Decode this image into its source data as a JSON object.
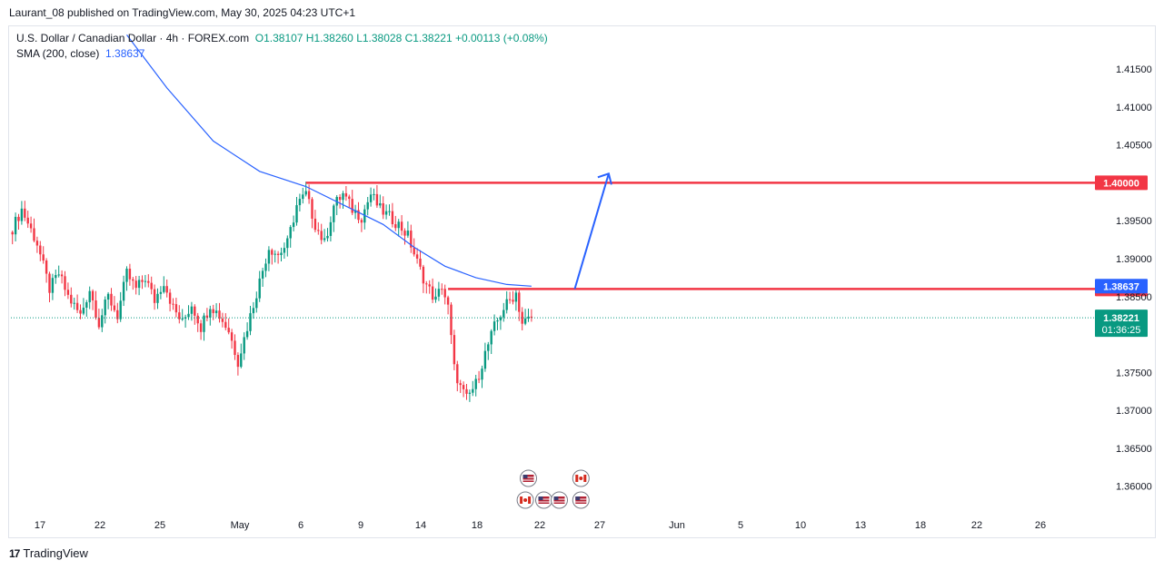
{
  "header": {
    "published_text": "Laurant_08 published on TradingView.com, May 30, 2025 04:23 UTC+1"
  },
  "legend": {
    "symbol": "U.S. Dollar / Canadian Dollar · 4h · FOREX.com",
    "ohlc": "O1.38107 H1.38260 L1.38028 C1.38221 +0.00113 (+0.08%)",
    "sma_label": "SMA (200, close)",
    "sma_value": "1.38637"
  },
  "footer": {
    "brand": "TradingView",
    "logo_text": "17"
  },
  "colors": {
    "up": "#089981",
    "down": "#f23645",
    "sma": "#2962ff",
    "level": "#f23645",
    "arrow": "#2962ff",
    "last_price": "#089981"
  },
  "chart_data": {
    "type": "candlestick",
    "symbol": "USDCAD",
    "timeframe": "4h",
    "y_ticks": [
      1.415,
      1.41,
      1.405,
      1.4,
      1.395,
      1.39,
      1.385,
      1.38,
      1.375,
      1.37,
      1.365,
      1.36
    ],
    "y_tick_labels": [
      "1.41500",
      "1.41000",
      "1.40500",
      "",
      "1.39500",
      "1.39000",
      "1.38500",
      "",
      "1.37500",
      "1.37000",
      "1.36500",
      "1.36000"
    ],
    "ylim": [
      1.3565,
      1.4205
    ],
    "x_ticks": [
      "17",
      "22",
      "25",
      "May",
      "6",
      "9",
      "14",
      "18",
      "22",
      "27",
      "Jun",
      "5",
      "10",
      "13",
      "18",
      "22",
      "26"
    ],
    "price_path": [
      [
        0,
        1.394
      ],
      [
        3,
        1.3965
      ],
      [
        8,
        1.392
      ],
      [
        12,
        1.386
      ],
      [
        15,
        1.388
      ],
      [
        18,
        1.385
      ],
      [
        22,
        1.3825
      ],
      [
        25,
        1.386
      ],
      [
        28,
        1.3815
      ],
      [
        31,
        1.385
      ],
      [
        34,
        1.3825
      ],
      [
        37,
        1.388
      ],
      [
        40,
        1.386
      ],
      [
        43,
        1.3875
      ],
      [
        46,
        1.3845
      ],
      [
        49,
        1.387
      ],
      [
        52,
        1.3835
      ],
      [
        55,
        1.3815
      ],
      [
        58,
        1.384
      ],
      [
        61,
        1.381
      ],
      [
        64,
        1.384
      ],
      [
        67,
        1.3825
      ],
      [
        70,
        1.3805
      ],
      [
        73,
        1.3765
      ],
      [
        76,
        1.381
      ],
      [
        80,
        1.387
      ],
      [
        83,
        1.3915
      ],
      [
        86,
        1.3905
      ],
      [
        89,
        1.392
      ],
      [
        92,
        1.397
      ],
      [
        95,
        1.3985
      ],
      [
        98,
        1.3945
      ],
      [
        101,
        1.392
      ],
      [
        104,
        1.397
      ],
      [
        107,
        1.3985
      ],
      [
        110,
        1.3965
      ],
      [
        113,
        1.3955
      ],
      [
        116,
        1.3985
      ],
      [
        119,
        1.3965
      ],
      [
        122,
        1.3955
      ],
      [
        125,
        1.3945
      ],
      [
        128,
        1.393
      ],
      [
        131,
        1.3895
      ],
      [
        134,
        1.3865
      ],
      [
        137,
        1.3845
      ],
      [
        139,
        1.3865
      ],
      [
        141,
        1.3835
      ],
      [
        143,
        1.3755
      ],
      [
        145,
        1.373
      ],
      [
        147,
        1.3715
      ],
      [
        150,
        1.3735
      ],
      [
        153,
        1.3775
      ],
      [
        156,
        1.381
      ],
      [
        159,
        1.3835
      ],
      [
        161,
        1.3845
      ],
      [
        163,
        1.3855
      ],
      [
        165,
        1.3815
      ],
      [
        168,
        1.3822
      ]
    ],
    "sma": {
      "name": "SMA (200, close)",
      "last": 1.38637,
      "points": [
        [
          37,
          1.4195
        ],
        [
          50,
          1.4125
        ],
        [
          65,
          1.4055
        ],
        [
          80,
          1.4015
        ],
        [
          95,
          1.3995
        ],
        [
          110,
          1.3965
        ],
        [
          120,
          1.3945
        ],
        [
          130,
          1.3915
        ],
        [
          140,
          1.389
        ],
        [
          150,
          1.3875
        ],
        [
          160,
          1.3866
        ],
        [
          168,
          1.38637
        ]
      ]
    },
    "levels": [
      {
        "value": 1.4,
        "label": "1.40000",
        "start_bar": 95
      },
      {
        "value": 1.386,
        "label": "1.38600",
        "start_bar": 141
      }
    ],
    "last_price": {
      "value": 1.38221,
      "label": "1.38221",
      "countdown": "01:36:25"
    },
    "sma_tag": {
      "value": 1.38637,
      "label": "1.38637"
    },
    "projection_arrow": {
      "from": [
        182,
        1.386
      ],
      "to": [
        193,
        1.4012
      ]
    },
    "events": [
      {
        "bar": 167,
        "flag": "US",
        "row": 1
      },
      {
        "bar": 184,
        "flag": "CA",
        "row": 1
      },
      {
        "bar": 166,
        "flag": "CA",
        "row": 2
      },
      {
        "bar": 172,
        "flag": "US",
        "row": 2
      },
      {
        "bar": 177,
        "flag": "US",
        "row": 2
      },
      {
        "bar": 184,
        "flag": "US",
        "row": 2
      }
    ]
  }
}
